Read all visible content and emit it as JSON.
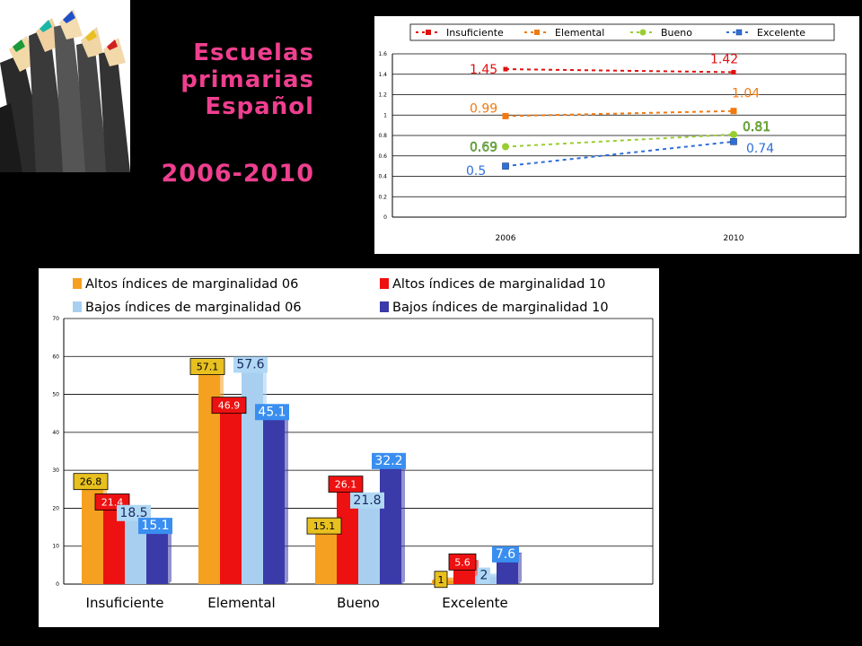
{
  "title": {
    "line1": "Escuelas",
    "line2": "primarias",
    "line3": "Español",
    "years": "2006-2010"
  },
  "chart_data": [
    {
      "type": "line",
      "x": [
        "2006",
        "2010"
      ],
      "ylim": [
        0,
        1.6
      ],
      "yticks": [
        "0",
        "0.2",
        "0.4",
        "0.6",
        "0.8",
        "1",
        "1.2",
        "1.4",
        "1.6"
      ],
      "grid": true,
      "legend_position": "top",
      "series": [
        {
          "name": "Insuficiente",
          "values": [
            1.45,
            1.42
          ],
          "labels": [
            "1.45",
            "1.42"
          ],
          "color": "#e01010"
        },
        {
          "name": "Elemental",
          "values": [
            0.99,
            1.04
          ],
          "labels": [
            "0.99",
            "1.04"
          ],
          "color": "#f07a10"
        },
        {
          "name": "Bueno",
          "values": [
            0.69,
            0.81
          ],
          "labels": [
            "0.69",
            "0.81"
          ],
          "color": "#9acd32"
        },
        {
          "name": "Excelente",
          "values": [
            0.5,
            0.74
          ],
          "labels": [
            "0.5",
            "0.74"
          ],
          "color": "#2f6fd8"
        }
      ]
    },
    {
      "type": "bar",
      "categories": [
        "Insuficiente",
        "Elemental",
        "Bueno",
        "Excelente"
      ],
      "ylim": [
        0,
        70
      ],
      "yticks": [
        "0",
        "10",
        "20",
        "30",
        "40",
        "50",
        "60",
        "70"
      ],
      "grid": true,
      "legend_position": "top",
      "series": [
        {
          "name": "Altos índices de marginalidad 06",
          "values": [
            26.8,
            57.1,
            15.1,
            1
          ],
          "labels": [
            "26.8",
            "57.1",
            "15.1",
            "1"
          ],
          "color": "#f5a020",
          "label_bg": "#e8c020",
          "label_color": "#000000"
        },
        {
          "name": "Altos índices de marginalidad 10",
          "values": [
            21.4,
            46.9,
            26.1,
            5.6
          ],
          "labels": [
            "21.4",
            "46.9",
            "26.1",
            "5.6"
          ],
          "color": "#ee1111",
          "label_bg": "#ee1111",
          "label_color": "#ffffff"
        },
        {
          "name": "Bajos índices de marginalidad 06",
          "values": [
            18.5,
            57.6,
            21.8,
            2
          ],
          "labels": [
            "18.5",
            "57.6",
            "21.8",
            "2"
          ],
          "color": "#a8cff0",
          "label_bg": "#b0d8f5",
          "label_color": "#1a2a60"
        },
        {
          "name": "Bajos índices de marginalidad 10",
          "values": [
            15.1,
            45.1,
            32.2,
            7.6
          ],
          "labels": [
            "15.1",
            "45.1",
            "32.2",
            "7.6"
          ],
          "color": "#3a3aa8",
          "label_bg": "#3a8ef0",
          "label_color": "#ffffff"
        }
      ]
    }
  ]
}
